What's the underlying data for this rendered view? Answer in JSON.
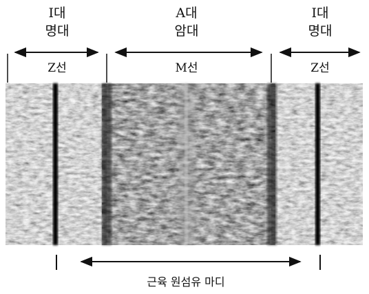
{
  "bands": {
    "i_band_left": {
      "line1": "I대",
      "line2": "명대"
    },
    "a_band": {
      "line1": "A대",
      "line2": "암대"
    },
    "i_band_right": {
      "line1": "I대",
      "line2": "명대"
    }
  },
  "lines": {
    "z_left": "Z선",
    "m": "M선",
    "z_right": "Z선"
  },
  "sarcomere_label": "근육 원섬유 마디"
}
